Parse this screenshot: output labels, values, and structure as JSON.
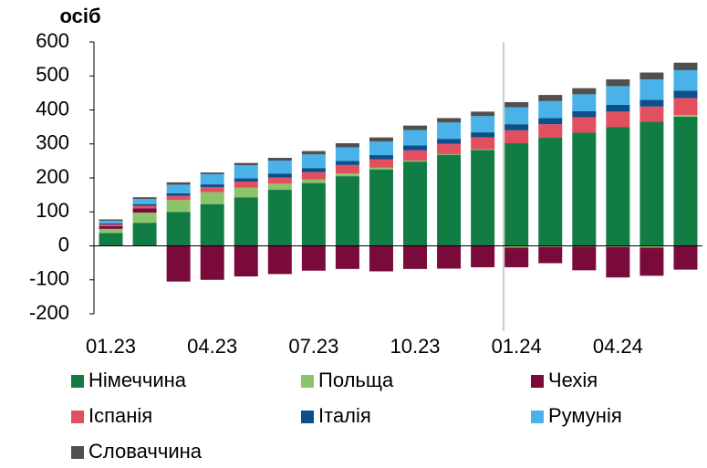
{
  "chart_data": {
    "type": "stacked_bar",
    "title": "осіб",
    "categories": [
      "01.23",
      null,
      null,
      "04.23",
      null,
      null,
      "07.23",
      null,
      null,
      "10.23",
      null,
      null,
      "01.24",
      null,
      null,
      "04.24",
      null,
      null
    ],
    "series": [
      {
        "name": "Німеччина",
        "color": "#127c45",
        "values": [
          38,
          68,
          100,
          123,
          143,
          165,
          185,
          205,
          225,
          248,
          268,
          282,
          302,
          318,
          333,
          350,
          365,
          380
        ]
      },
      {
        "name": "Польща",
        "color": "#8cc46c",
        "values": [
          12,
          30,
          35,
          35,
          28,
          18,
          10,
          8,
          5,
          3,
          2,
          2,
          -5,
          -3,
          -2,
          -3,
          -5,
          5
        ]
      },
      {
        "name": "Чехія",
        "color": "#7a0a3a",
        "values": [
          8,
          12,
          -105,
          -100,
          -90,
          -83,
          -73,
          -68,
          -75,
          -68,
          -67,
          -63,
          -58,
          -48,
          -70,
          -90,
          -83,
          -70
        ]
      },
      {
        "name": "Іспанія",
        "color": "#e2505f",
        "values": [
          5,
          8,
          12,
          15,
          18,
          18,
          22,
          25,
          25,
          30,
          30,
          35,
          38,
          40,
          45,
          45,
          45,
          50
        ]
      },
      {
        "name": "Італія",
        "color": "#0d4f8b",
        "values": [
          3,
          5,
          8,
          8,
          10,
          12,
          12,
          12,
          12,
          15,
          15,
          15,
          18,
          18,
          18,
          20,
          20,
          22
        ]
      },
      {
        "name": "Румунія",
        "color": "#49b2e8",
        "values": [
          8,
          15,
          25,
          30,
          38,
          38,
          40,
          40,
          40,
          45,
          48,
          48,
          50,
          50,
          50,
          55,
          60,
          60
        ]
      },
      {
        "name": "Словаччина",
        "color": "#505050",
        "values": [
          4,
          5,
          7,
          5,
          7,
          8,
          10,
          12,
          12,
          13,
          13,
          13,
          15,
          18,
          18,
          20,
          20,
          22
        ]
      }
    ],
    "ylim": [
      -200,
      600
    ],
    "yticks": [
      -200,
      -100,
      0,
      100,
      200,
      300,
      400,
      500,
      600
    ]
  }
}
